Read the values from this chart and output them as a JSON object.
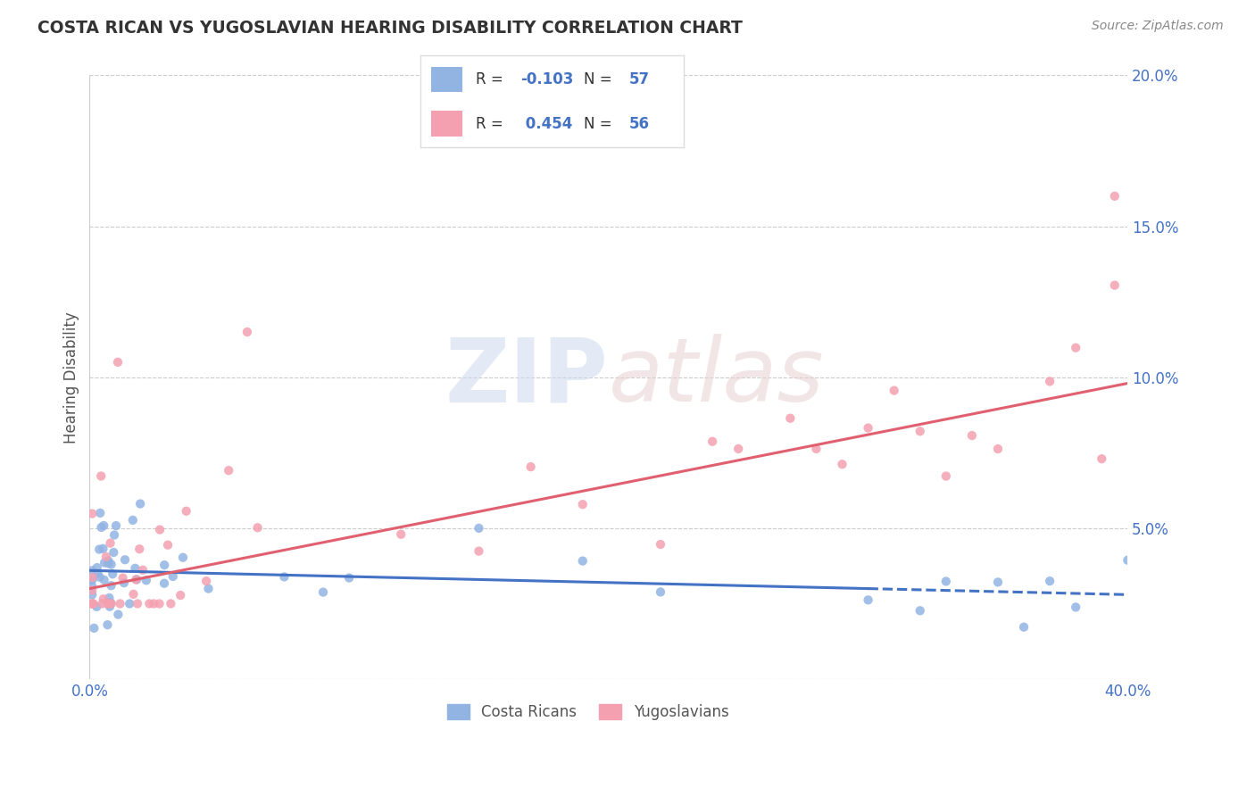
{
  "title": "COSTA RICAN VS YUGOSLAVIAN HEARING DISABILITY CORRELATION CHART",
  "source": "Source: ZipAtlas.com",
  "ylabel": "Hearing Disability",
  "xlim": [
    0.0,
    0.4
  ],
  "ylim": [
    0.0,
    0.2
  ],
  "xticks": [
    0.0,
    0.05,
    0.1,
    0.15,
    0.2,
    0.25,
    0.3,
    0.35,
    0.4
  ],
  "yticks": [
    0.0,
    0.05,
    0.1,
    0.15,
    0.2
  ],
  "yticklabels": [
    "",
    "5.0%",
    "10.0%",
    "15.0%",
    "20.0%"
  ],
  "costa_rican_color": "#92b4e3",
  "yugoslavian_color": "#f4a0b0",
  "costa_rican_line_color": "#4472c4",
  "yugoslavian_line_color": "#e06070",
  "R_costa": -0.103,
  "N_costa": 57,
  "R_yugo": 0.454,
  "N_yugo": 56,
  "background_color": "#ffffff",
  "grid_color": "#cccccc",
  "legend_labels": [
    "Costa Ricans",
    "Yugoslavians"
  ],
  "title_color": "#333333",
  "axis_label_color": "#555555",
  "tick_label_color": "#4472c4",
  "source_color": "#888888",
  "line_intercept_costa": 0.036,
  "line_slope_costa": -0.02,
  "line_intercept_yugo": 0.03,
  "line_slope_yugo": 0.17
}
